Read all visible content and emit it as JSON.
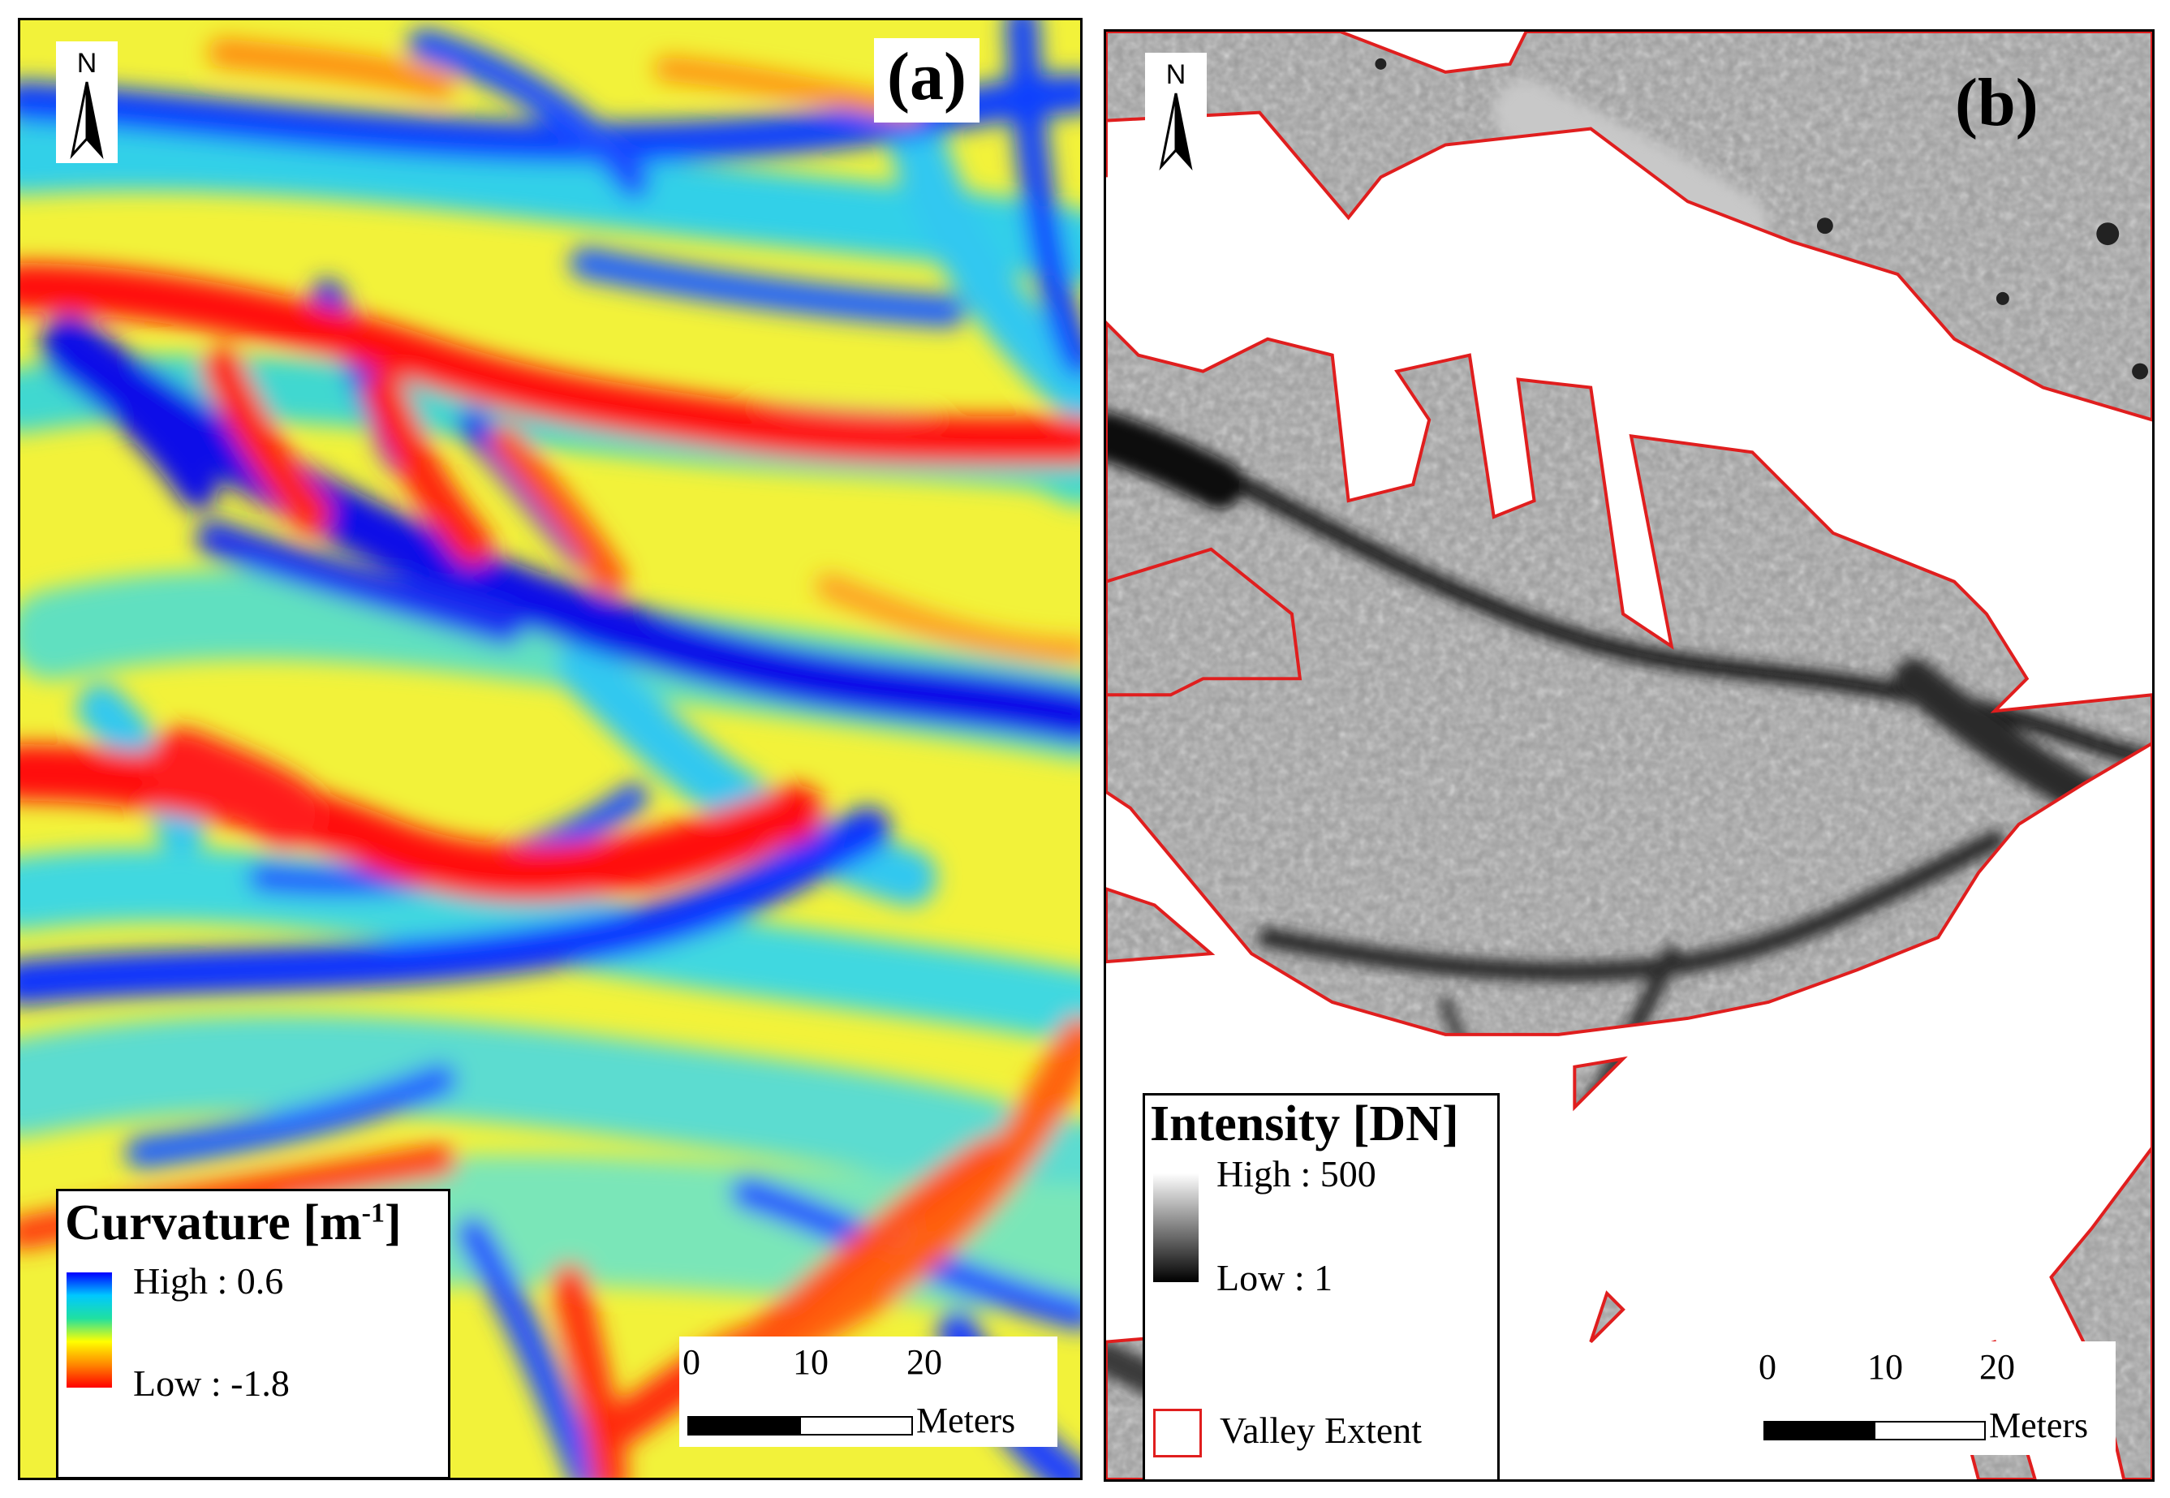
{
  "panel_a": {
    "label": "(a)",
    "north": "N",
    "legend": {
      "title_main": "Curvature [m",
      "title_sup": "-1",
      "title_end": "]",
      "high_label": "High : 0.6",
      "low_label": "Low : -1.8",
      "ramp_colors": [
        "#0000ff",
        "#00c8ff",
        "#20e0a0",
        "#ffff00",
        "#ff8800",
        "#ff0000"
      ]
    },
    "scale": {
      "ticks": [
        "0",
        "10",
        "20"
      ],
      "unit": "Meters"
    }
  },
  "panel_b": {
    "label": "(b)",
    "north": "N",
    "legend": {
      "title": "Intensity [DN]",
      "high_label": "High : 500",
      "low_label": "Low : 1",
      "valley_label": "Valley Extent",
      "valley_color": "#e01e1e",
      "ramp_colors": [
        "#ffffff",
        "#000000"
      ]
    },
    "scale": {
      "ticks": [
        "0",
        "10",
        "20"
      ],
      "unit": "Meters"
    }
  }
}
